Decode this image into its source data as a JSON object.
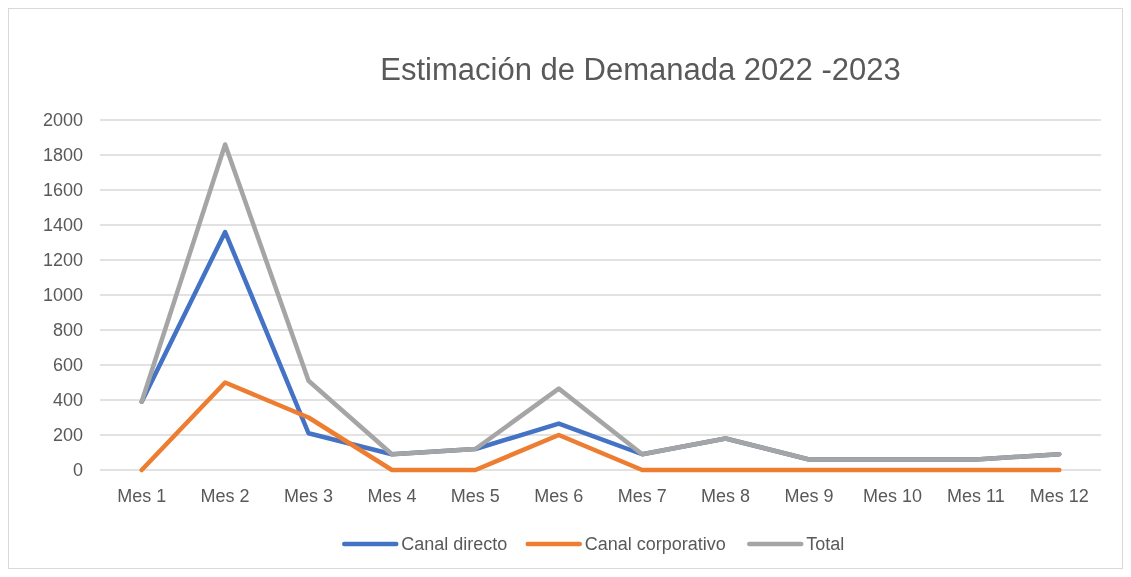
{
  "chart_data": {
    "type": "line",
    "title": "Estimación de Demanada 2022 -2023",
    "categories": [
      "Mes 1",
      "Mes 2",
      "Mes 3",
      "Mes 4",
      "Mes 5",
      "Mes 6",
      "Mes 7",
      "Mes 8",
      "Mes 9",
      "Mes 10",
      "Mes 11",
      "Mes 12"
    ],
    "series": [
      {
        "name": "Canal directo",
        "color": "#4472c4",
        "values": [
          390,
          1360,
          210,
          90,
          120,
          265,
          90,
          180,
          60,
          60,
          60,
          90
        ]
      },
      {
        "name": "Canal corporativo",
        "color": "#ed7d31",
        "values": [
          0,
          500,
          300,
          0,
          0,
          200,
          0,
          0,
          0,
          0,
          0,
          0
        ]
      },
      {
        "name": "Total",
        "color": "#a5a5a5",
        "values": [
          390,
          1860,
          510,
          90,
          120,
          465,
          90,
          180,
          60,
          60,
          60,
          90
        ]
      }
    ],
    "ylim": [
      0,
      2000
    ],
    "yticks": [
      0,
      200,
      400,
      600,
      800,
      1000,
      1200,
      1400,
      1600,
      1800,
      2000
    ],
    "grid": "y",
    "legend": "bottom",
    "marker": "none",
    "line_style": "solid"
  }
}
